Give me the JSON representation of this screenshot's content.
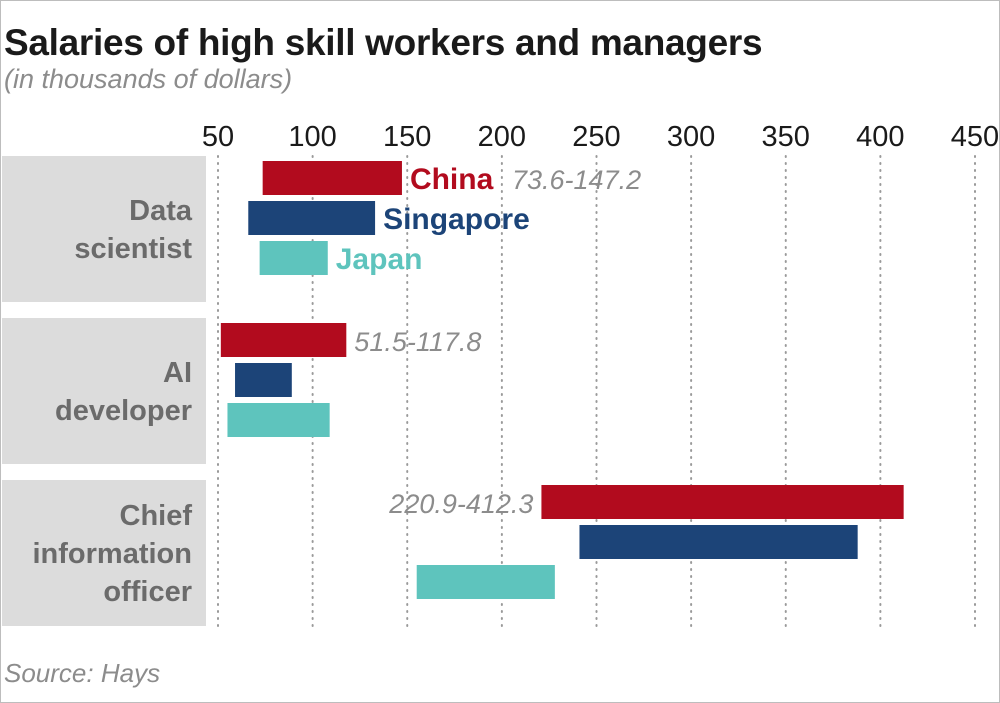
{
  "chart_data": {
    "type": "bar",
    "orientation": "horizontal-range",
    "title": "Salaries of high skill workers and managers",
    "subtitle": "(in thousands of dollars)",
    "source": "Source: Hays",
    "xlim": [
      50,
      450
    ],
    "x_ticks": [
      50,
      100,
      150,
      200,
      250,
      300,
      350,
      400,
      450
    ],
    "grid": "vertical dotted",
    "categories": [
      {
        "label_lines": [
          "Data",
          "scientist"
        ]
      },
      {
        "label_lines": [
          "AI",
          "developer"
        ]
      },
      {
        "label_lines": [
          "Chief",
          "information",
          "officer"
        ]
      }
    ],
    "series": [
      {
        "name": "China",
        "color": "#b20b1e",
        "ranges": [
          [
            73.6,
            147.2
          ],
          [
            51.5,
            117.8
          ],
          [
            220.9,
            412.3
          ]
        ],
        "range_labels": [
          "73.6-147.2",
          "51.5-117.8",
          "220.9-412.3"
        ]
      },
      {
        "name": "Singapore",
        "color": "#1c4478",
        "ranges": [
          [
            66,
            133
          ],
          [
            59,
            89
          ],
          [
            241,
            388
          ]
        ]
      },
      {
        "name": "Japan",
        "color": "#5ec4bd",
        "ranges": [
          [
            72,
            108
          ],
          [
            55,
            109
          ],
          [
            155,
            228
          ]
        ]
      }
    ]
  }
}
